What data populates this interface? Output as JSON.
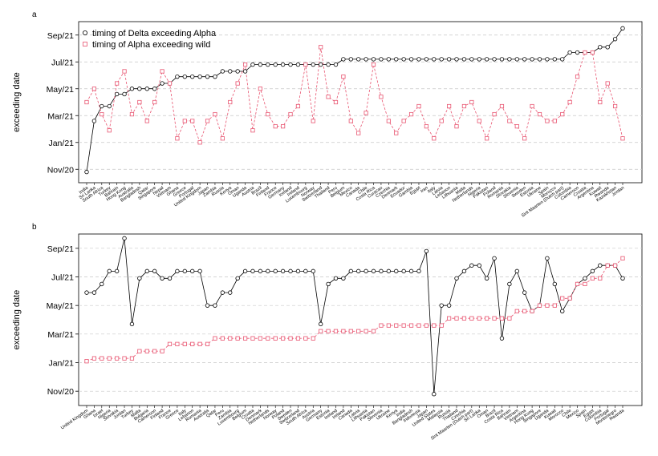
{
  "chart_data": [
    {
      "type": "line",
      "title": "a",
      "ylabel": "exceeding date",
      "legend": "upper left",
      "grid": true,
      "ylim": [
        -1,
        11
      ],
      "yticks": [
        {
          "value": 0,
          "label": "Nov/20"
        },
        {
          "value": 2,
          "label": "Jan/21"
        },
        {
          "value": 4,
          "label": "Mar/21"
        },
        {
          "value": 6,
          "label": "May/21"
        },
        {
          "value": 8,
          "label": "Jul/21"
        },
        {
          "value": 10,
          "label": "Sep/21"
        }
      ],
      "categories": [
        "India",
        "Sri Lanka",
        "South Africa",
        "Turkey",
        "Bahrain",
        "Hong Kong",
        "Australia",
        "Bangladesh",
        "Qatar",
        "Singapore",
        "Nepal",
        "Vietnam",
        "Ghana",
        "Greece",
        "Portugal",
        "United Kingdom",
        "Japan",
        "Zambia",
        "Russia",
        "Kenya",
        "Oman",
        "Uganda",
        "Austria",
        "Brazil",
        "Finland",
        "France",
        "Germany",
        "Iceland",
        "Ireland",
        "Luxembourg",
        "Norway",
        "Switzerland",
        "Thailand",
        "Peru",
        "Belgium",
        "Mexico",
        "Canada",
        "Chile",
        "Costa Rica",
        "Curacao",
        "Czechia",
        "Denmark",
        "Ecuador",
        "Gambia",
        "Egypt",
        "Iran",
        "Italy",
        "Latvia",
        "Lebanon",
        "Lithuania",
        "Malta",
        "Netherlands",
        "Nigeria",
        "Pakistan",
        "Poland",
        "Romania",
        "Slovakia",
        "Slovenia",
        "Sweden",
        "Estonia",
        "Ukraine",
        "Spain",
        "Morocco",
        "Sint Maarten (Dutch part)",
        "Colombia",
        "Cameroon",
        "Croatia",
        "Argentina",
        "Kuwait",
        "Rwanda",
        "Kazakhstan",
        "Jordan"
      ],
      "series": [
        {
          "name": "timing of Delta exceeding Alpha",
          "color": "#000000",
          "marker": "circle",
          "line": "solid",
          "values": [
            -0.2,
            3.6,
            4.7,
            4.7,
            5.6,
            5.6,
            6.0,
            6.0,
            6.0,
            6.0,
            6.4,
            6.4,
            6.9,
            6.9,
            6.9,
            6.9,
            6.9,
            6.9,
            7.3,
            7.3,
            7.3,
            7.3,
            7.8,
            7.8,
            7.8,
            7.8,
            7.8,
            7.8,
            7.8,
            7.8,
            7.8,
            7.8,
            7.8,
            7.8,
            8.2,
            8.2,
            8.2,
            8.2,
            8.2,
            8.2,
            8.2,
            8.2,
            8.2,
            8.2,
            8.2,
            8.2,
            8.2,
            8.2,
            8.2,
            8.2,
            8.2,
            8.2,
            8.2,
            8.2,
            8.2,
            8.2,
            8.2,
            8.2,
            8.2,
            8.2,
            8.2,
            8.2,
            8.2,
            8.2,
            8.7,
            8.7,
            8.7,
            8.7,
            9.1,
            9.1,
            9.7,
            10.5
          ]
        },
        {
          "name": "timing of Alpha exceeding wild",
          "color": "#e8536f",
          "marker": "square",
          "line": "dashed",
          "values": [
            5.0,
            6.0,
            4.1,
            2.9,
            6.4,
            7.3,
            4.1,
            5.0,
            3.6,
            5.0,
            7.3,
            6.4,
            2.3,
            3.6,
            3.6,
            2.0,
            3.6,
            4.1,
            2.3,
            5.0,
            6.4,
            7.8,
            2.9,
            6.0,
            4.1,
            3.2,
            3.2,
            4.1,
            4.7,
            7.8,
            3.6,
            9.1,
            5.4,
            5.0,
            6.9,
            3.6,
            2.7,
            4.2,
            7.8,
            5.4,
            3.6,
            2.7,
            3.6,
            4.1,
            4.7,
            3.2,
            2.3,
            3.6,
            4.7,
            3.2,
            4.7,
            5.0,
            3.6,
            2.3,
            4.1,
            4.7,
            3.6,
            3.2,
            2.3,
            4.7,
            4.1,
            3.6,
            3.6,
            4.1,
            5.0,
            6.9,
            8.7,
            8.7,
            5.0,
            6.4,
            4.7,
            2.3
          ]
        }
      ]
    },
    {
      "type": "line",
      "title": "b",
      "ylabel": "exceeding date",
      "grid": true,
      "ylim": [
        -1,
        11
      ],
      "yticks": [
        {
          "value": 0,
          "label": "Nov/20"
        },
        {
          "value": 2,
          "label": "Jan/21"
        },
        {
          "value": 4,
          "label": "Mar/21"
        },
        {
          "value": 6,
          "label": "May/21"
        },
        {
          "value": 8,
          "label": "Jul/21"
        },
        {
          "value": 10,
          "label": "Sep/21"
        }
      ],
      "categories": [
        "United Kingdom",
        "Ghana",
        "Israel",
        "Nigeria",
        "Slovakia",
        "Jordan",
        "Turkey",
        "Malta",
        "Bulgaria",
        "Cameroon",
        "Finland",
        "France",
        "Greece",
        "Italy",
        "Lebanon",
        "Romania",
        "Australia",
        "Qatar",
        "Peru",
        "Zambia",
        "Luxembourg",
        "Belgium",
        "Croatia",
        "Denmark",
        "Netherlands",
        "Norway",
        "Poland",
        "Sweden",
        "Switzerland",
        "South Africa",
        "Austria",
        "Germany",
        "Estonia",
        "Iceland",
        "Ireland",
        "Canada",
        "Latvia",
        "Lithuania",
        "Pakistan",
        "Slovenia",
        "Ukraine",
        "Kenya",
        "India",
        "Bangladesh",
        "Indonesia",
        "Japan",
        "United States",
        "Malaysia",
        "Russia",
        "Thailand",
        "Czechia",
        "Sint Maarten (Dutch part)",
        "Sri Lanka",
        "Oman",
        "Brazil",
        "Costa Rica",
        "Bahrain",
        "Vietnam",
        "Argentina",
        "Hong Kong",
        "Singapore",
        "Uganda",
        "Kuwait",
        "Morocco",
        "Chile",
        "Mexico",
        "Spain",
        "Egypt",
        "Colombia",
        "Portugal",
        "Montenegro",
        "Rwanda"
      ],
      "series": [
        {
          "color": "#000000",
          "marker": "circle",
          "line": "solid",
          "values": [
            6.9,
            6.9,
            7.5,
            8.4,
            8.4,
            10.7,
            4.7,
            7.9,
            8.4,
            8.4,
            7.9,
            7.9,
            8.4,
            8.4,
            8.4,
            8.4,
            6.0,
            6.0,
            6.9,
            6.9,
            7.9,
            8.4,
            8.4,
            8.4,
            8.4,
            8.4,
            8.4,
            8.4,
            8.4,
            8.4,
            8.4,
            4.7,
            7.5,
            7.9,
            7.9,
            8.4,
            8.4,
            8.4,
            8.4,
            8.4,
            8.4,
            8.4,
            8.4,
            8.4,
            8.4,
            9.8,
            -0.2,
            6.0,
            6.0,
            7.9,
            8.4,
            8.8,
            8.8,
            7.9,
            9.3,
            3.7,
            7.5,
            8.4,
            6.9,
            5.6,
            6.0,
            9.3,
            7.5,
            5.6,
            6.5,
            7.5,
            7.9,
            8.4,
            8.8,
            8.8,
            8.8,
            7.9
          ]
        },
        {
          "color": "#e8536f",
          "marker": "square",
          "line": "dashed",
          "values": [
            2.1,
            2.3,
            2.3,
            2.3,
            2.3,
            2.3,
            2.3,
            2.8,
            2.8,
            2.8,
            2.8,
            3.3,
            3.3,
            3.3,
            3.3,
            3.3,
            3.3,
            3.7,
            3.7,
            3.7,
            3.7,
            3.7,
            3.7,
            3.7,
            3.7,
            3.7,
            3.7,
            3.7,
            3.7,
            3.7,
            3.7,
            4.2,
            4.2,
            4.2,
            4.2,
            4.2,
            4.2,
            4.2,
            4.2,
            4.6,
            4.6,
            4.6,
            4.6,
            4.6,
            4.6,
            4.6,
            4.6,
            4.6,
            5.1,
            5.1,
            5.1,
            5.1,
            5.1,
            5.1,
            5.1,
            5.1,
            5.1,
            5.6,
            5.6,
            5.6,
            6.0,
            6.0,
            6.0,
            6.5,
            6.5,
            7.5,
            7.5,
            7.9,
            7.9,
            8.8,
            8.8,
            9.3
          ]
        }
      ]
    }
  ]
}
